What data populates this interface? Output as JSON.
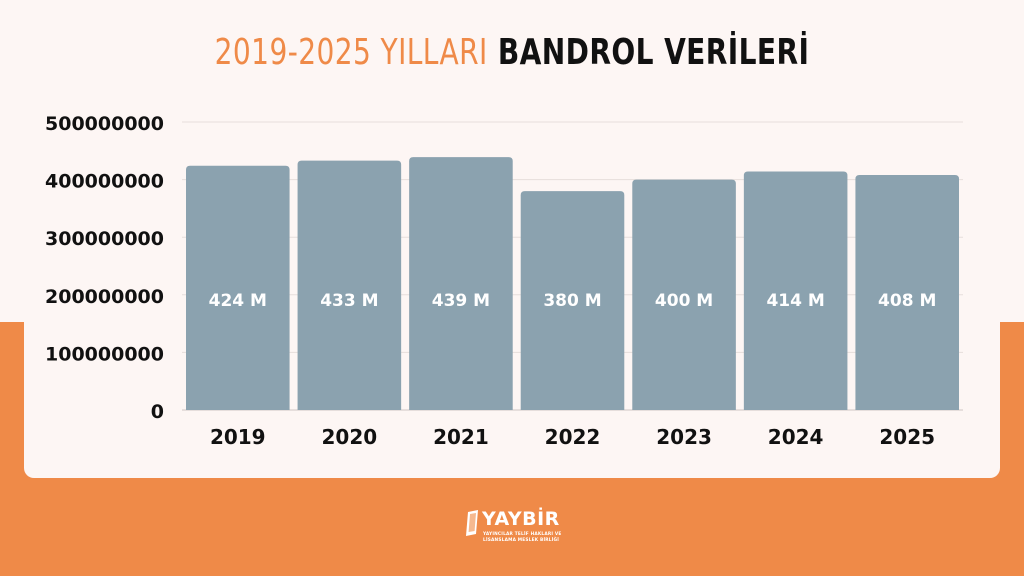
{
  "title": {
    "part1": "2019-2025 YILLARI",
    "part2": "BANDROL VERİLERİ"
  },
  "colors": {
    "accent": "#ef8a48",
    "bar": "#8ba2af",
    "background": "#fdf6f4",
    "title_dark": "#111111"
  },
  "chart_data": {
    "type": "bar",
    "title": "2019-2025 YILLARI BANDROL VERİLERİ",
    "xlabel": "",
    "ylabel": "",
    "categories": [
      "2019",
      "2020",
      "2021",
      "2022",
      "2023",
      "2024",
      "2025"
    ],
    "values": [
      424000000,
      433000000,
      439000000,
      380000000,
      400000000,
      414000000,
      408000000
    ],
    "data_labels": [
      "424 M",
      "433 M",
      "439 M",
      "380 M",
      "400 M",
      "414 M",
      "408 M"
    ],
    "y_ticks": [
      0,
      100000000,
      200000000,
      300000000,
      400000000,
      500000000
    ],
    "y_tick_labels": [
      "0",
      "100000000",
      "200000000",
      "300000000",
      "400000000",
      "500000000"
    ],
    "ylim": [
      0,
      500000000
    ],
    "grid": true,
    "legend": "none"
  },
  "logo": {
    "name": "YAYBİR",
    "subtitle": "YAYINCILAR TELİF HAKLARI VE LİSANSLAMA MESLEK BİRLİĞİ"
  }
}
